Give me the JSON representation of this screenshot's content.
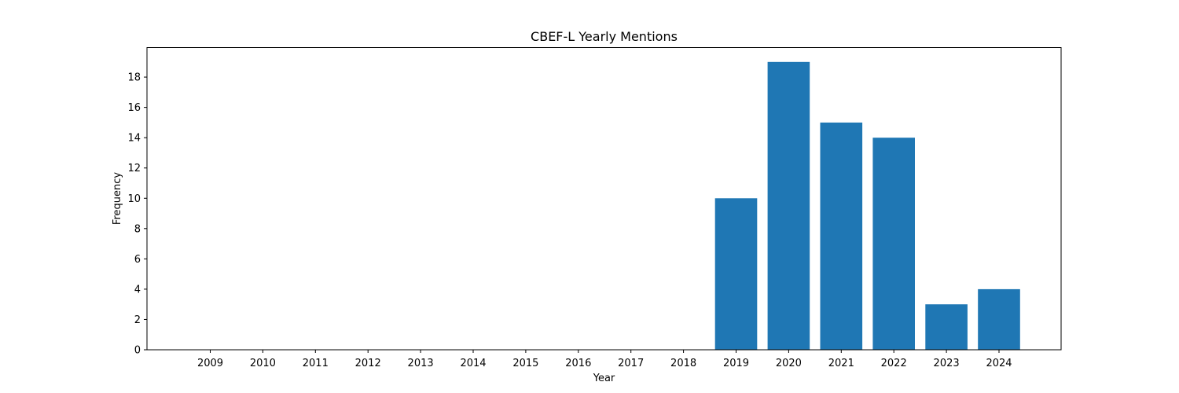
{
  "chart_data": {
    "type": "bar",
    "title": "CBEF-L Yearly Mentions",
    "xlabel": "Year",
    "ylabel": "Frequency",
    "categories": [
      "2009",
      "2010",
      "2011",
      "2012",
      "2013",
      "2014",
      "2015",
      "2016",
      "2017",
      "2018",
      "2019",
      "2020",
      "2021",
      "2022",
      "2023",
      "2024"
    ],
    "values": [
      0,
      0,
      0,
      0,
      0,
      0,
      0,
      0,
      0,
      0,
      10,
      19,
      15,
      14,
      3,
      4
    ],
    "ylim": [
      0,
      19.95
    ],
    "yticks": [
      0,
      2,
      4,
      6,
      8,
      10,
      12,
      14,
      16,
      18
    ],
    "grid": false,
    "bar_color": "#1f77b4"
  }
}
